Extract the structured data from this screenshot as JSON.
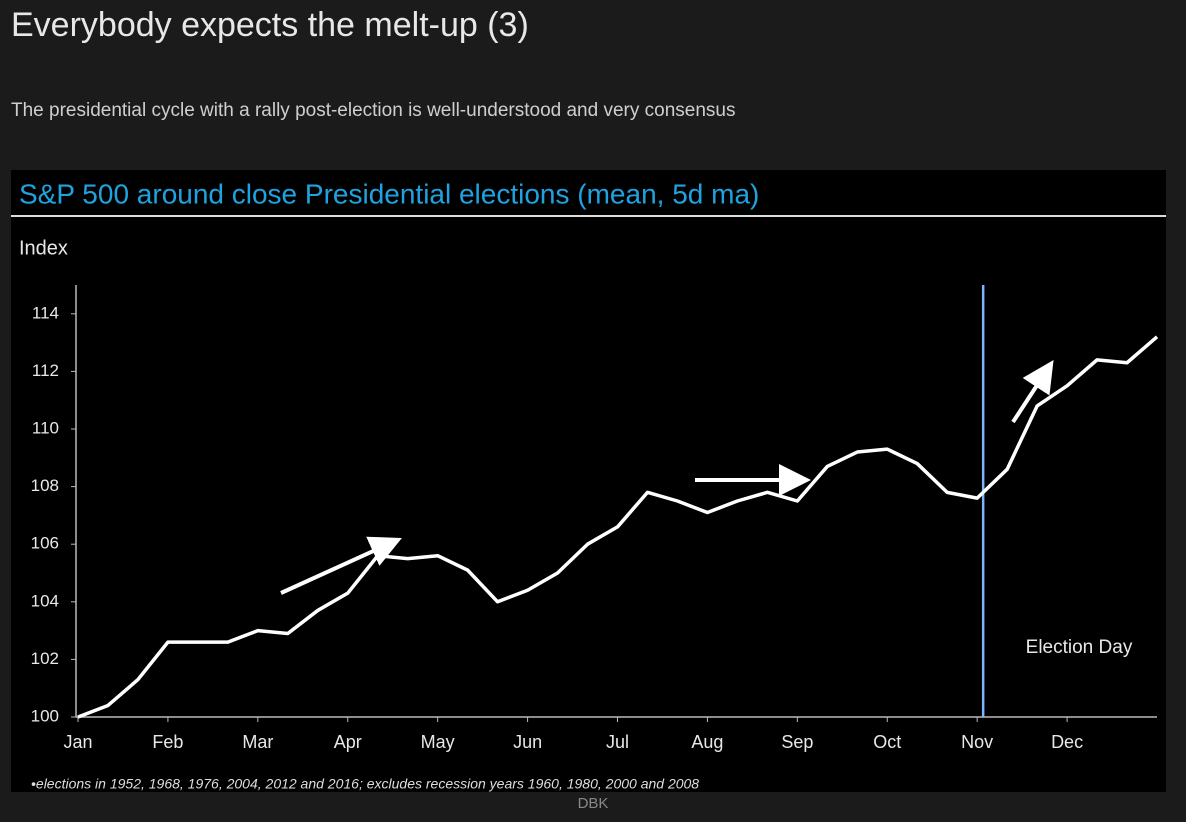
{
  "header": {
    "title": "Everybody expects the melt-up (3)",
    "subtitle": "The presidential cycle with a rally post-election is well-understood and very consensus"
  },
  "source": "DBK",
  "chart_data": {
    "type": "line",
    "title": "S&P 500 around close Presidential elections  (mean, 5d ma)",
    "ylabel": "Index",
    "footnote": "•elections in 1952, 1968, 1976, 2004, 2012 and 2016; excludes recession years 1960, 1980, 2000 and 2008",
    "annotation": "Election Day",
    "categories": [
      "Jan",
      null,
      null,
      "Feb",
      null,
      null,
      "Mar",
      null,
      null,
      "Apr",
      null,
      null,
      "May",
      null,
      null,
      "Jun",
      null,
      null,
      "Jul",
      null,
      null,
      "Aug",
      null,
      null,
      "Sep",
      null,
      null,
      "Oct",
      null,
      null,
      "Nov",
      null,
      null,
      "Dec",
      null,
      null,
      null
    ],
    "series": [
      {
        "color": "#ffffff",
        "values": [
          100,
          100.4,
          101.3,
          102.6,
          102.6,
          102.6,
          103.0,
          102.9,
          103.7,
          104.3,
          105.6,
          105.5,
          105.6,
          105.1,
          104.0,
          104.4,
          105.0,
          106.0,
          106.6,
          107.8,
          107.5,
          107.1,
          107.5,
          107.8,
          107.5,
          108.7,
          109.2,
          109.3,
          108.8,
          107.8,
          107.6,
          108.6,
          110.8,
          111.5,
          112.4,
          112.3,
          113.2
        ]
      }
    ],
    "ylim": [
      100,
      115
    ],
    "yticks": [
      100,
      102,
      104,
      106,
      108,
      110,
      112,
      114
    ]
  }
}
